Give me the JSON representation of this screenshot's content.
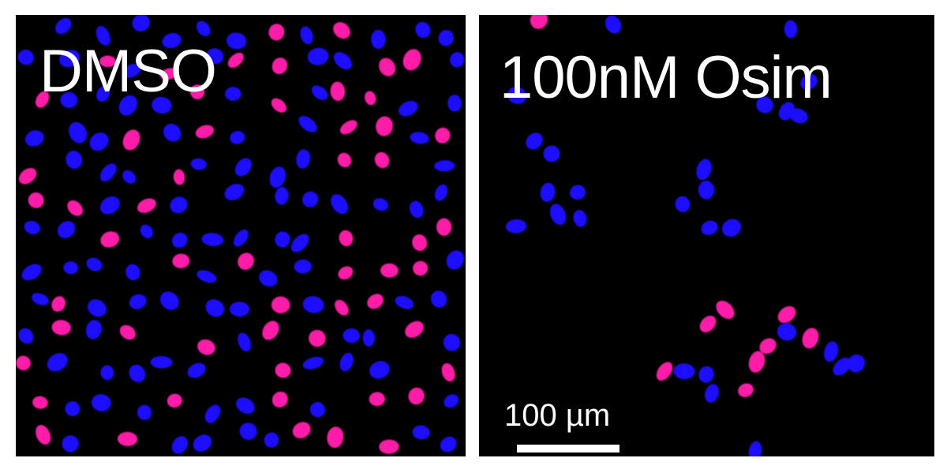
{
  "panels": {
    "left": {
      "label": "DMSO"
    },
    "right": {
      "label": "100nM Osim"
    }
  },
  "scale": {
    "label": "100 µm"
  },
  "colors": {
    "magenta_nuclei": "#ff1aa8",
    "blue_nuclei": "#1a0dff",
    "background": "#000000"
  }
}
